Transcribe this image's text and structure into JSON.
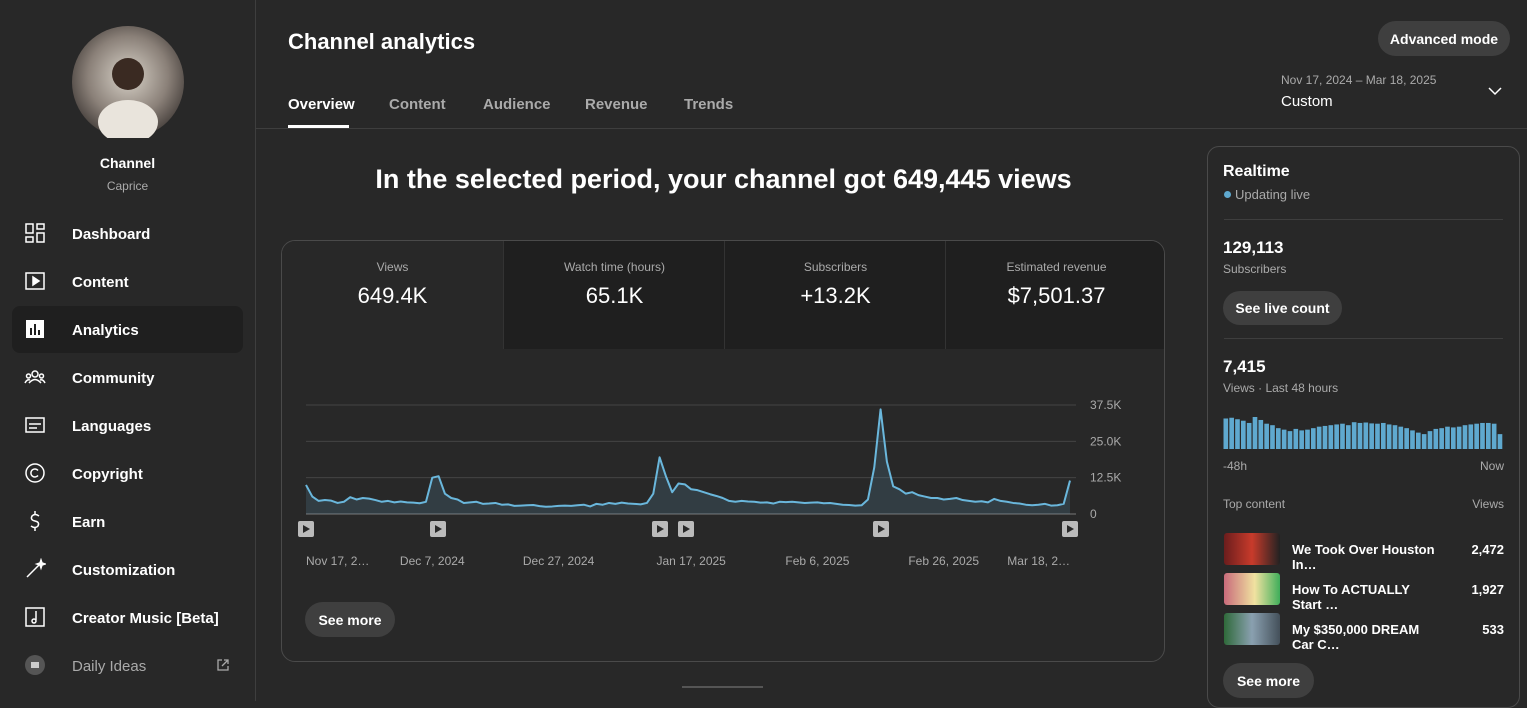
{
  "sidebar": {
    "channel_label": "Channel",
    "channel_name": "Caprice",
    "nav": [
      "Dashboard",
      "Content",
      "Analytics",
      "Community",
      "Languages",
      "Copyright",
      "Earn",
      "Customization",
      "Creator Music [Beta]",
      "Daily Ideas"
    ]
  },
  "header": {
    "title": "Channel analytics",
    "advanced_button": "Advanced mode",
    "tabs": [
      "Overview",
      "Content",
      "Audience",
      "Revenue",
      "Trends"
    ],
    "date_range": "Nov 17, 2024 – Mar 18, 2025",
    "date_preset": "Custom"
  },
  "summary": "In the selected period, your channel got 649,445 views",
  "metrics": [
    {
      "label": "Views",
      "value": "649.4K"
    },
    {
      "label": "Watch time (hours)",
      "value": "65.1K"
    },
    {
      "label": "Subscribers",
      "value": "+13.2K"
    },
    {
      "label": "Estimated revenue",
      "value": "$7,501.37"
    }
  ],
  "see_more": "See more",
  "chart_data": [
    {
      "type": "line",
      "color": "#6ab7dc",
      "categories": [
        "Nov 17, 2…",
        null,
        null,
        null,
        null,
        null,
        null,
        null,
        null,
        null,
        null,
        null,
        null,
        null,
        null,
        null,
        null,
        null,
        null,
        null,
        "Dec 7, 2024",
        null,
        null,
        null,
        null,
        null,
        null,
        null,
        null,
        null,
        null,
        null,
        null,
        null,
        null,
        null,
        null,
        null,
        null,
        null,
        "Dec 27, 2024",
        null,
        null,
        null,
        null,
        null,
        null,
        null,
        null,
        null,
        null,
        null,
        null,
        null,
        null,
        null,
        null,
        null,
        null,
        null,
        null,
        "Jan 17, 2025",
        null,
        null,
        null,
        null,
        null,
        null,
        null,
        null,
        null,
        null,
        null,
        null,
        null,
        null,
        null,
        null,
        null,
        null,
        null,
        "Feb 6, 2025",
        null,
        null,
        null,
        null,
        null,
        null,
        null,
        null,
        null,
        null,
        null,
        null,
        null,
        null,
        null,
        null,
        null,
        null,
        null,
        "Feb 26, 2025",
        null,
        null,
        null,
        null,
        null,
        null,
        null,
        null,
        null,
        null,
        null,
        null,
        null,
        null,
        null,
        null,
        null,
        null,
        null,
        "Mar 18, 2…"
      ],
      "values": [
        10000,
        6000,
        4500,
        4800,
        4600,
        3800,
        4200,
        5800,
        5000,
        5500,
        5300,
        4800,
        4200,
        4500,
        4000,
        4300,
        4000,
        3900,
        3700,
        4200,
        12500,
        13000,
        7000,
        5500,
        5000,
        3800,
        4000,
        4200,
        3500,
        3600,
        3800,
        3200,
        3300,
        2800,
        2900,
        3000,
        3100,
        2700,
        2500,
        2600,
        2800,
        2900,
        2800,
        3000,
        3200,
        2600,
        3500,
        3200,
        3800,
        3500,
        3900,
        3600,
        3500,
        3300,
        3800,
        7000,
        19500,
        13000,
        7500,
        10500,
        10200,
        8500,
        8200,
        7500,
        6800,
        6200,
        5500,
        4500,
        4200,
        4500,
        4300,
        4200,
        3900,
        4000,
        3600,
        4200,
        4100,
        4200,
        4000,
        3800,
        3900,
        4000,
        3700,
        3800,
        3500,
        3200,
        3100,
        2900,
        3000,
        5000,
        16000,
        36000,
        18000,
        9500,
        8500,
        7000,
        7500,
        6500,
        6000,
        5500,
        5500,
        5000,
        5200,
        5500,
        4800,
        4500,
        4200,
        4400,
        4000,
        5200,
        4500,
        4200,
        3800,
        3600,
        3200,
        3000,
        3200,
        3500,
        2900,
        3000,
        3500,
        11500
      ],
      "ylim": [
        0,
        37500
      ],
      "yticks": [
        0,
        {
          "value": 12500,
          "label": "12.5K"
        },
        {
          "value": 25000,
          "label": "25.0K"
        },
        {
          "value": 37500,
          "label": "37.5K"
        }
      ],
      "grid": true
    },
    {
      "type": "bar",
      "color": "#5fa9cf",
      "x_start_label": "-48h",
      "x_end_label": "Now",
      "values": [
        205,
        210,
        200,
        190,
        175,
        215,
        195,
        170,
        160,
        140,
        130,
        120,
        135,
        125,
        130,
        140,
        150,
        155,
        160,
        165,
        170,
        160,
        180,
        175,
        178,
        172,
        170,
        175,
        165,
        160,
        150,
        140,
        125,
        110,
        100,
        120,
        135,
        140,
        150,
        145,
        150,
        160,
        165,
        170,
        175,
        175,
        170,
        100
      ]
    }
  ],
  "realtime": {
    "title": "Realtime",
    "status": "Updating live",
    "subscribers": "129,113",
    "subscribers_label": "Subscribers",
    "live_count_button": "See live count",
    "views": "7,415",
    "views_label": "Views · Last 48 hours",
    "top_content_label": "Top content",
    "top_content_views_label": "Views",
    "top_content": [
      {
        "title": "We Took Over Houston In…",
        "views": "2,472"
      },
      {
        "title": "How To ACTUALLY Start …",
        "views": "1,927"
      },
      {
        "title": "My $350,000 DREAM Car C…",
        "views": "533"
      }
    ],
    "see_more": "See more"
  }
}
